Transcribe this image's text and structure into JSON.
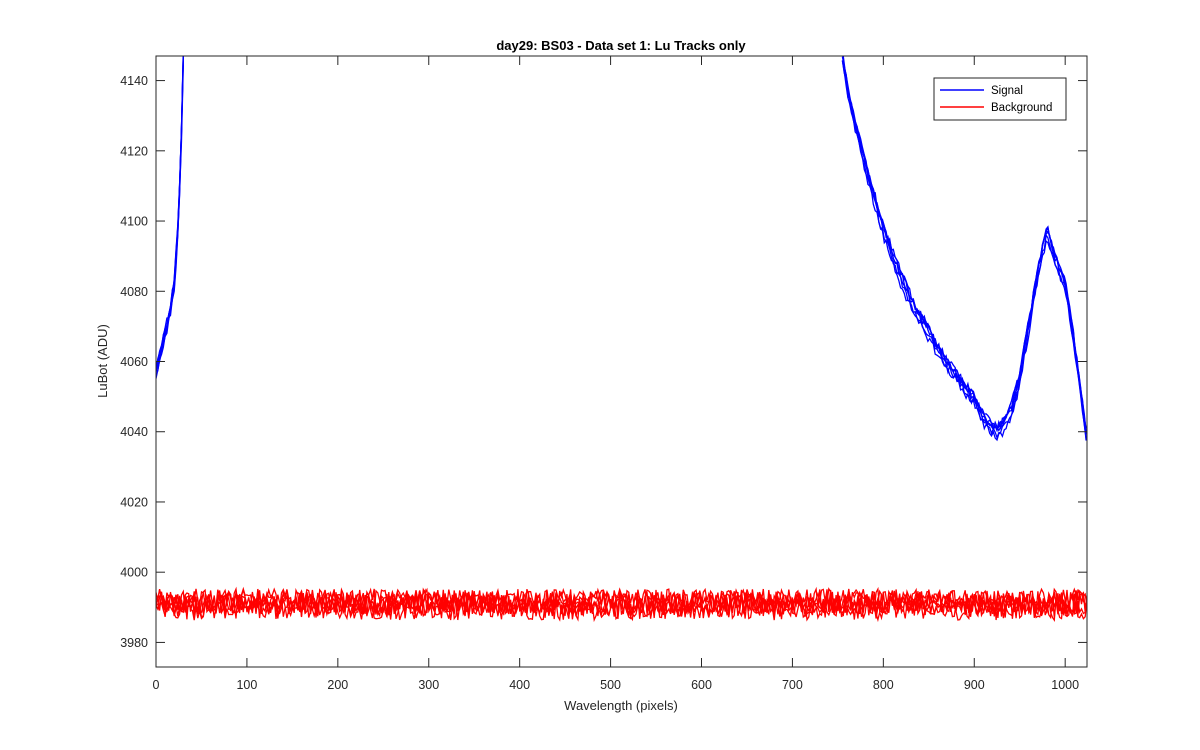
{
  "chart_data": {
    "type": "line",
    "title": "day29: BS03 - Data set 1: Lu Tracks only",
    "xlabel": "Wavelength (pixels)",
    "ylabel": "LuBot (ADU)",
    "xlim": [
      0,
      1024
    ],
    "ylim": [
      3973,
      4147
    ],
    "xticks": [
      0,
      100,
      200,
      300,
      400,
      500,
      600,
      700,
      800,
      900,
      1000
    ],
    "yticks": [
      3980,
      4000,
      4020,
      4040,
      4060,
      4080,
      4100,
      4120,
      4140
    ],
    "grid": false,
    "legend": {
      "position": "top-right",
      "entries": [
        "Signal",
        "Background"
      ]
    },
    "colors": {
      "Signal": "#0000ff",
      "Background": "#ff0000"
    },
    "series": [
      {
        "name": "Signal",
        "traces": 6,
        "x": [
          0,
          5,
          10,
          15,
          20,
          25,
          28,
          30,
          755,
          760,
          770,
          780,
          790,
          800,
          810,
          820,
          830,
          840,
          850,
          860,
          870,
          880,
          890,
          900,
          910,
          920,
          925,
          930,
          940,
          950,
          960,
          970,
          980,
          990,
          1000,
          1010,
          1020,
          1024
        ],
        "y": [
          4057,
          4062,
          4068,
          4073,
          4082,
          4100,
          4125,
          4147,
          4147,
          4138,
          4126,
          4116,
          4106,
          4097,
          4090,
          4083,
          4077,
          4072,
          4068,
          4063,
          4059,
          4056,
          4052,
          4049,
          4043,
          4041,
          4040,
          4041,
          4045,
          4055,
          4070,
          4085,
          4097,
          4088,
          4082,
          4065,
          4045,
          4037
        ]
      },
      {
        "name": "Background",
        "traces": 6,
        "x": [
          0,
          1024
        ],
        "y": [
          3991,
          3991
        ]
      }
    ]
  }
}
